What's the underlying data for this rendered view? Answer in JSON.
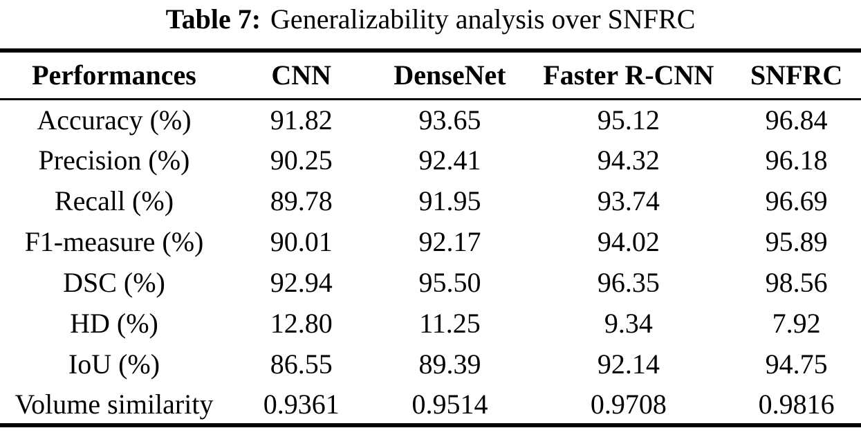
{
  "title": {
    "label": "Table 7:",
    "text": "Generalizability analysis over SNFRC"
  },
  "chart_data": {
    "type": "table",
    "columns": [
      "Performances",
      "CNN",
      "DenseNet",
      "Faster R-CNN",
      "SNFRC"
    ],
    "rows": [
      {
        "metric": "Accuracy (%)",
        "values": [
          "91.82",
          "93.65",
          "95.12",
          "96.84"
        ]
      },
      {
        "metric": "Precision (%)",
        "values": [
          "90.25",
          "92.41",
          "94.32",
          "96.18"
        ]
      },
      {
        "metric": "Recall (%)",
        "values": [
          "89.78",
          "91.95",
          "93.74",
          "96.69"
        ]
      },
      {
        "metric": "F1-measure (%)",
        "values": [
          "90.01",
          "92.17",
          "94.02",
          "95.89"
        ]
      },
      {
        "metric": "DSC (%)",
        "values": [
          "92.94",
          "95.50",
          "96.35",
          "98.56"
        ]
      },
      {
        "metric": "HD (%)",
        "values": [
          "12.80",
          "11.25",
          "9.34",
          "7.92"
        ]
      },
      {
        "metric": "IoU (%)",
        "values": [
          "86.55",
          "89.39",
          "92.14",
          "94.75"
        ]
      },
      {
        "metric": "Volume similarity",
        "values": [
          "0.9361",
          "0.9514",
          "0.9708",
          "0.9816"
        ]
      }
    ]
  }
}
